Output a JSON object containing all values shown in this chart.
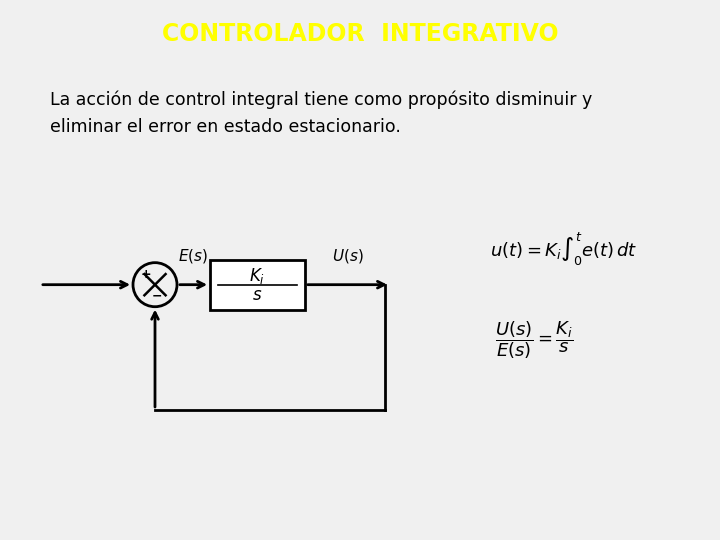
{
  "title": "CONTROLADOR  INTEGRATIVO",
  "title_color": "#FFFF00",
  "title_bg_color": "#0000CC",
  "body_bg_color": "#F0F0F0",
  "text_line1": "La acción de control integral tiene como propósito disminuir y",
  "text_line2": "eliminar el error en estado estacionario.",
  "text_color": "#000000",
  "text_fontsize": 12.5,
  "title_fontsize": 17,
  "fig_width": 7.2,
  "fig_height": 5.4,
  "dpi": 100
}
